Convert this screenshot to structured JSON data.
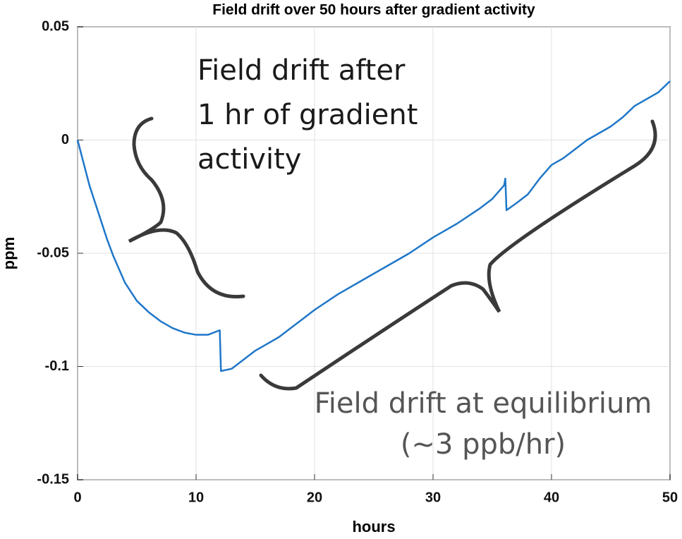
{
  "chart_data": {
    "type": "line",
    "title": "Field drift over 50 hours after gradient activity",
    "xlabel": "hours",
    "ylabel": "ppm",
    "x": [
      0,
      0.5,
      1,
      1.5,
      2,
      2.5,
      3,
      3.5,
      4,
      5,
      6,
      7,
      8,
      9,
      10,
      11,
      12,
      12.1,
      13,
      14,
      15,
      16,
      17,
      18,
      19,
      20,
      22,
      24,
      26,
      28,
      30,
      32,
      34,
      35,
      36,
      36.1,
      36.2,
      37,
      38,
      39,
      40,
      41,
      42,
      43,
      44,
      45,
      46,
      47,
      48,
      49,
      50
    ],
    "series": [
      {
        "name": "ppm",
        "color": "#1f77c8",
        "values": [
          0,
          -0.01,
          -0.02,
          -0.028,
          -0.036,
          -0.044,
          -0.051,
          -0.057,
          -0.063,
          -0.071,
          -0.076,
          -0.08,
          -0.083,
          -0.085,
          -0.086,
          -0.086,
          -0.084,
          -0.102,
          -0.101,
          -0.097,
          -0.093,
          -0.09,
          -0.087,
          -0.083,
          -0.079,
          -0.075,
          -0.068,
          -0.062,
          -0.056,
          -0.05,
          -0.043,
          -0.037,
          -0.03,
          -0.026,
          -0.02,
          -0.017,
          -0.031,
          -0.028,
          -0.024,
          -0.017,
          -0.011,
          -0.008,
          -0.004,
          0.0,
          0.003,
          0.006,
          0.01,
          0.015,
          0.018,
          0.021,
          0.026
        ]
      }
    ],
    "xlim": [
      0,
      50
    ],
    "xticks": [
      0,
      10,
      20,
      30,
      40,
      50
    ],
    "ylim": [
      -0.15,
      0.05
    ],
    "yticks": [
      -0.15,
      -0.1,
      -0.05,
      0,
      0.05
    ],
    "grid": true,
    "annotations": [
      {
        "lines": [
          "Field drift after",
          "1 hr of gradient",
          "activity"
        ]
      },
      {
        "lines": [
          "Field drift at equilibrium",
          "(~3 ppb/hr)"
        ]
      }
    ]
  }
}
